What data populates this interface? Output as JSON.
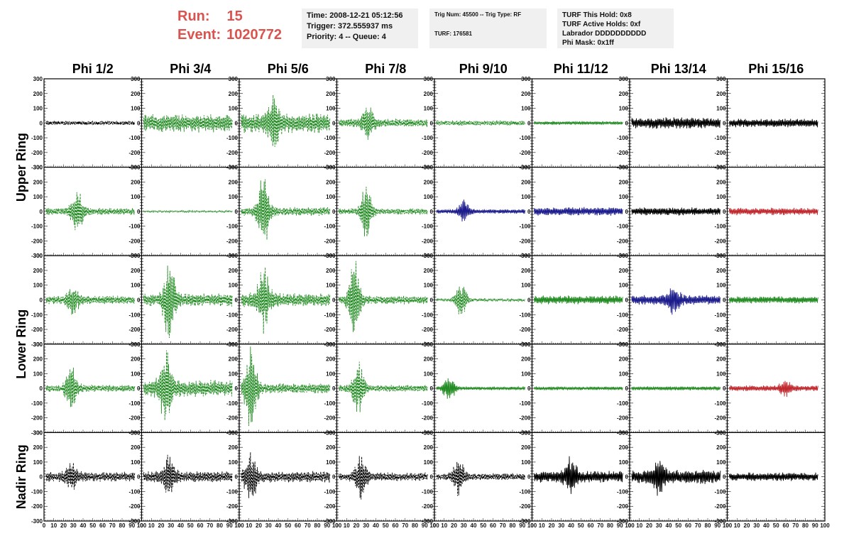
{
  "header": {
    "run_label": "Run:",
    "run_value": "15",
    "event_label": "Event:",
    "event_value": "1020772",
    "time_line": "Time: 2008-12-21 05:12:56",
    "trigger_line": "Trigger: 372.555937 ms",
    "priority_line": "Priority: 4 -- Queue: 4",
    "trig_num_line": "Trig Num: 45500 -- Trig Type: RF",
    "turf_line": "TURF: 176581",
    "turf_hold_line": "TURF This Hold: 0x8",
    "turf_active_line": "TURF Active Holds: 0xf",
    "labrador_line": "Labrador DDDDDDDDDD",
    "phi_mask_line": "Phi Mask: 0x1ff"
  },
  "chart_data": {
    "type": "line",
    "columns": [
      "Phi 1/2",
      "Phi 3/4",
      "Phi 5/6",
      "Phi 7/8",
      "Phi 9/10",
      "Phi 11/12",
      "Phi 13/14",
      "Phi 15/16"
    ],
    "rows": [
      "Upper Ring",
      "Upper Ring",
      "Lower Ring",
      "Lower Ring",
      "Nadir Ring"
    ],
    "row_labels": [
      {
        "text": "Upper Ring",
        "span": [
          0,
          1
        ]
      },
      {
        "text": "Lower Ring",
        "span": [
          2,
          3
        ]
      },
      {
        "text": "Nadir Ring",
        "span": [
          4,
          4
        ]
      }
    ],
    "xlim": [
      0,
      100
    ],
    "ylim": [
      -300,
      300
    ],
    "x_ticks": [
      "0",
      "10",
      "20",
      "30",
      "40",
      "50",
      "60",
      "70",
      "80",
      "90",
      "100"
    ],
    "y_ticks": [
      "300",
      "200",
      "100",
      "0",
      "-100",
      "-200",
      "-300"
    ],
    "colors": {
      "black": "#000000",
      "green": "#228b22",
      "blue": "#1c1c8c",
      "red": "#c0282d"
    },
    "panels": [
      [
        {
          "color": "black",
          "style": "dashed",
          "amp": 15,
          "bursts": []
        },
        {
          "color": "green",
          "style": "dashed",
          "amp": 65,
          "bursts": []
        },
        {
          "color": "green",
          "style": "dashed",
          "amp": 70,
          "bursts": [
            [
              35,
              140
            ]
          ]
        },
        {
          "color": "green",
          "style": "dashed",
          "amp": 30,
          "bursts": [
            [
              32,
              100
            ]
          ]
        },
        {
          "color": "green",
          "style": "dashed",
          "amp": 18,
          "bursts": []
        },
        {
          "color": "green",
          "style": "solid",
          "amp": 12,
          "bursts": []
        },
        {
          "color": "black",
          "style": "solid",
          "amp": 40,
          "bursts": []
        },
        {
          "color": "black",
          "style": "solid",
          "amp": 30,
          "bursts": []
        }
      ],
      [
        {
          "color": "green",
          "style": "dashed",
          "amp": 25,
          "bursts": [
            [
              34,
              140
            ]
          ]
        },
        {
          "color": "green",
          "style": "dashed",
          "amp": 6,
          "bursts": []
        },
        {
          "color": "green",
          "style": "dashed",
          "amp": 30,
          "bursts": [
            [
              25,
              240
            ]
          ]
        },
        {
          "color": "green",
          "style": "dashed",
          "amp": 22,
          "bursts": [
            [
              30,
              180
            ]
          ]
        },
        {
          "color": "blue",
          "style": "solid",
          "amp": 15,
          "bursts": [
            [
              30,
              70
            ]
          ]
        },
        {
          "color": "blue",
          "style": "solid",
          "amp": 30,
          "bursts": []
        },
        {
          "color": "black",
          "style": "solid",
          "amp": 28,
          "bursts": []
        },
        {
          "color": "red",
          "style": "solid",
          "amp": 26,
          "bursts": []
        }
      ],
      [
        {
          "color": "green",
          "style": "dashed",
          "amp": 30,
          "bursts": [
            [
              30,
              90
            ]
          ]
        },
        {
          "color": "green",
          "style": "dashed",
          "amp": 45,
          "bursts": [
            [
              28,
              260
            ]
          ]
        },
        {
          "color": "green",
          "style": "dashed",
          "amp": 50,
          "bursts": [
            [
              25,
              200
            ]
          ]
        },
        {
          "color": "green",
          "style": "dashed",
          "amp": 30,
          "bursts": [
            [
              18,
              280
            ]
          ]
        },
        {
          "color": "green",
          "style": "dashed",
          "amp": 10,
          "bursts": [
            [
              27,
              120
            ]
          ]
        },
        {
          "color": "green",
          "style": "solid",
          "amp": 30,
          "bursts": []
        },
        {
          "color": "blue",
          "style": "solid",
          "amp": 35,
          "bursts": [
            [
              45,
              80
            ]
          ]
        },
        {
          "color": "green",
          "style": "solid",
          "amp": 25,
          "bursts": []
        }
      ],
      [
        {
          "color": "green",
          "style": "dashed",
          "amp": 25,
          "bursts": [
            [
              28,
              140
            ]
          ]
        },
        {
          "color": "green",
          "style": "dashed",
          "amp": 60,
          "bursts": [
            [
              25,
              230
            ]
          ]
        },
        {
          "color": "green",
          "style": "dashed",
          "amp": 35,
          "bursts": [
            [
              12,
              280
            ]
          ]
        },
        {
          "color": "green",
          "style": "dashed",
          "amp": 25,
          "bursts": [
            [
              22,
              170
            ]
          ]
        },
        {
          "color": "green",
          "style": "solid",
          "amp": 12,
          "bursts": [
            [
              15,
              90
            ]
          ]
        },
        {
          "color": "green",
          "style": "solid",
          "amp": 12,
          "bursts": []
        },
        {
          "color": "green",
          "style": "solid",
          "amp": 14,
          "bursts": []
        },
        {
          "color": "red",
          "style": "solid",
          "amp": 20,
          "bursts": [
            [
              60,
              50
            ]
          ]
        }
      ],
      [
        {
          "color": "black",
          "style": "dashed",
          "amp": 35,
          "bursts": [
            [
              28,
              80
            ]
          ]
        },
        {
          "color": "black",
          "style": "dashed",
          "amp": 40,
          "bursts": [
            [
              28,
              120
            ]
          ]
        },
        {
          "color": "black",
          "style": "dashed",
          "amp": 40,
          "bursts": [
            [
              12,
              160
            ]
          ]
        },
        {
          "color": "black",
          "style": "dashed",
          "amp": 30,
          "bursts": [
            [
              25,
              140
            ]
          ]
        },
        {
          "color": "black",
          "style": "dashed",
          "amp": 25,
          "bursts": [
            [
              25,
              110
            ]
          ]
        },
        {
          "color": "black",
          "style": "solid",
          "amp": 40,
          "bursts": [
            [
              40,
              120
            ]
          ]
        },
        {
          "color": "black",
          "style": "solid",
          "amp": 50,
          "bursts": [
            [
              30,
              90
            ]
          ]
        },
        {
          "color": "black",
          "style": "solid",
          "amp": 30,
          "bursts": []
        }
      ]
    ]
  }
}
